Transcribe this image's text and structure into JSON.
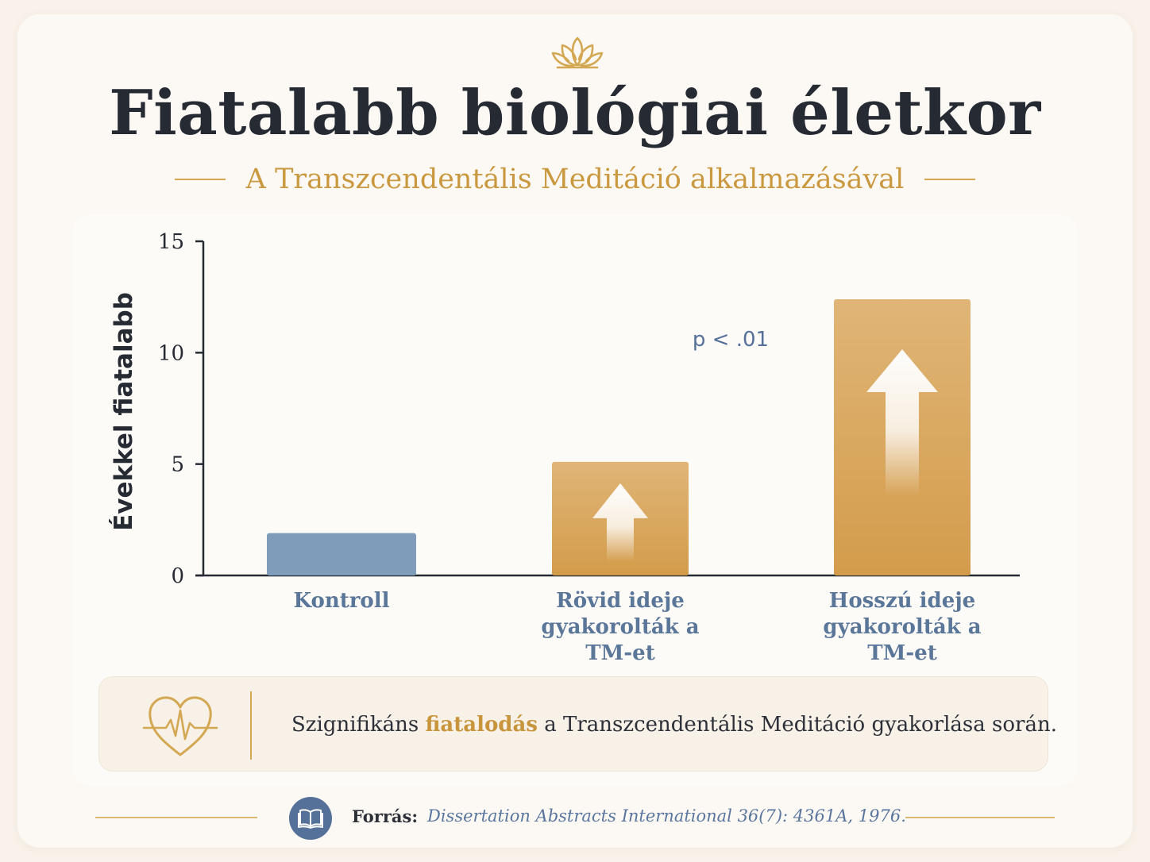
{
  "header": {
    "title": "Fiatalabb biológiai életkor",
    "subtitle": "A Transzcendentális Meditáció alkalmazásával"
  },
  "chart_data": {
    "type": "bar",
    "ylabel": "Évekkel fiatalabb",
    "ylim": [
      0,
      15
    ],
    "yticks": [
      0,
      5,
      10,
      15
    ],
    "categories": [
      [
        "Kontroll"
      ],
      [
        "Rövid ideje",
        "gyakorolták a",
        "TM-et"
      ],
      [
        "Hosszú ideje",
        "gyakorolták a",
        "TM-et"
      ]
    ],
    "values": [
      1.9,
      5.1,
      12.4
    ],
    "bar_colors": [
      "#7f9dba",
      "#d8a659",
      "#d8a659"
    ],
    "arrows": [
      false,
      true,
      true
    ],
    "annotation": "p < .01",
    "grid": false,
    "legend": "none"
  },
  "callout": {
    "icon": "heartbeat-icon",
    "text_before": "Szignifikáns ",
    "highlight": "fiatalodás",
    "text_after": " a Transzcendentális Meditáció gyakorlása során."
  },
  "source": {
    "icon": "book-icon",
    "label": "Forrás:",
    "text": "Dissertation Abstracts International 36(7): 4361A, 1976."
  },
  "colors": {
    "accent_gold": "#d4a853",
    "accent_blue": "#55719a",
    "title": "#262a33"
  }
}
